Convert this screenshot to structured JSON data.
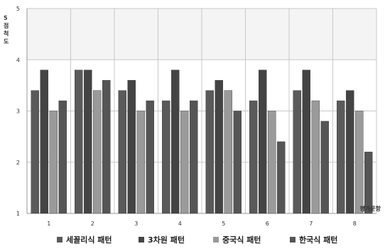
{
  "chart_data": {
    "type": "bar",
    "ylabel": "5 점척도",
    "xlabel": "평가문항",
    "ylim": [
      1,
      5
    ],
    "yticks": [
      1,
      2,
      3,
      4,
      5
    ],
    "categories": [
      "1",
      "2",
      "3",
      "4",
      "5",
      "6",
      "7",
      "8"
    ],
    "grid": true,
    "legend": "bottom",
    "series": [
      {
        "name": "세꼴리식 패턴",
        "color": "#5a5a5a",
        "values": [
          3.4,
          3.8,
          3.4,
          3.2,
          3.4,
          3.2,
          3.4,
          3.2
        ]
      },
      {
        "name": "3차원 패턴",
        "color": "#444444",
        "values": [
          3.8,
          3.8,
          3.6,
          3.8,
          3.6,
          3.8,
          3.8,
          3.4
        ]
      },
      {
        "name": "중국식 패턴",
        "color": "#9a9a9a",
        "values": [
          3.0,
          3.4,
          3.0,
          3.0,
          3.4,
          3.0,
          3.2,
          3.0
        ]
      },
      {
        "name": "한국식 패턴",
        "color": "#555555",
        "values": [
          3.2,
          3.6,
          3.2,
          3.2,
          3.0,
          2.4,
          2.8,
          2.2
        ]
      }
    ]
  }
}
